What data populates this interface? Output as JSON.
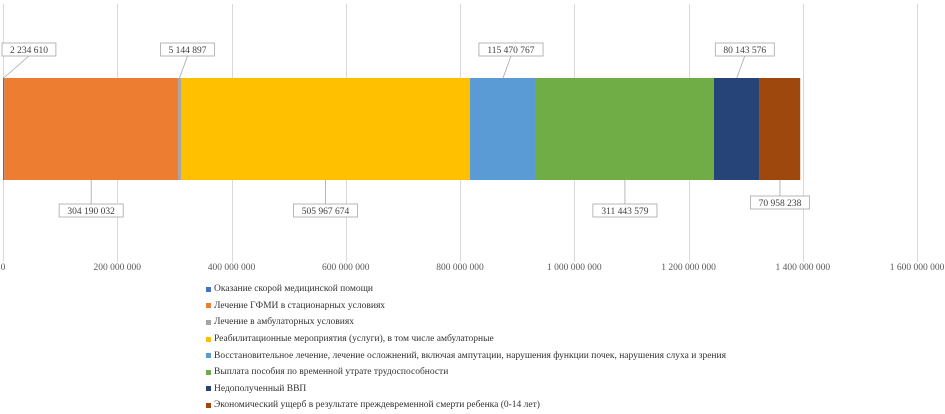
{
  "chart_data": {
    "type": "bar",
    "orientation": "horizontal",
    "stacked": true,
    "grid": true,
    "legend_position": "bottom",
    "xlim": [
      0,
      1600000000
    ],
    "x_ticks": [
      0,
      200000000,
      400000000,
      600000000,
      800000000,
      1000000000,
      1200000000,
      1400000000,
      1600000000
    ],
    "x_tick_labels": [
      "0",
      "200 000 000",
      "400 000 000",
      "600 000 000",
      "800 000 000",
      "1 000 000 000",
      "1 200 000 000",
      "1 400 000 000",
      "1 600 000 000"
    ],
    "series": [
      {
        "name": "Оказание скорой медицинской помощи",
        "value": 2234610,
        "label": "2 234 610",
        "color": "#4472c4",
        "label_side": "above"
      },
      {
        "name": "Лечение ГФМИ в стационарных условиях",
        "value": 304190032,
        "label": "304 190 032",
        "color": "#ed7d31",
        "label_side": "below"
      },
      {
        "name": "Лечение в амбулаторных условиях",
        "value": 5144897,
        "label": "5 144 897",
        "color": "#a5a5a5",
        "label_side": "above"
      },
      {
        "name": "Реабилитационные мероприятия (услуги), в том числе амбулаторные",
        "value": 505967674,
        "label": "505 967 674",
        "color": "#ffc000",
        "label_side": "below"
      },
      {
        "name": "Восстановительное лечение, лечение осложнений, включая ампутации, нарушения функции почек, нарушения слуха и зрения",
        "value": 115470767,
        "label": "115 470 767",
        "color": "#5b9bd5",
        "label_side": "above"
      },
      {
        "name": "Выплата пособия по временной утрате трудоспособности",
        "value": 311443579,
        "label": "311 443 579",
        "color": "#70ad47",
        "label_side": "below"
      },
      {
        "name": "Недополученный ВВП",
        "value": 80143576,
        "label": "80 143 576",
        "color": "#264478",
        "label_side": "above"
      },
      {
        "name": "Экономический ущерб в результате преждевременной смерти ребенка (0-14 лет)",
        "value": 70958238,
        "label": "70 958 238",
        "color": "#9e480e",
        "label_side": "below"
      }
    ]
  }
}
